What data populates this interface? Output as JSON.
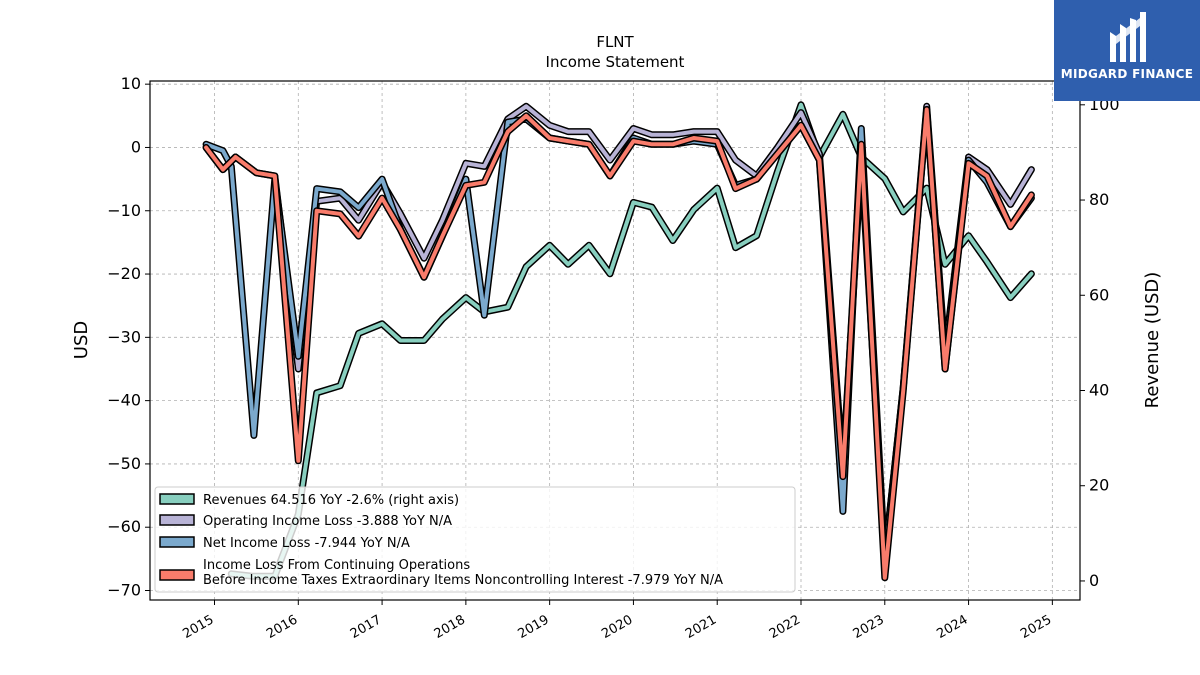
{
  "chart_data": {
    "type": "line",
    "title": "FLNT",
    "subtitle": "Income Statement",
    "ylabel": "USD",
    "ylabel_right": "Revenue (USD)",
    "ylim": [
      -71.5,
      10.5
    ],
    "ylim_right": [
      -4.0,
      105.0
    ],
    "xlim": [
      2014.23,
      2025.33
    ],
    "yticks": [
      10,
      0,
      -10,
      -20,
      -30,
      -40,
      -50,
      -60,
      -70
    ],
    "ytick_labels": [
      "10",
      "0",
      "−10",
      "−20",
      "−30",
      "−40",
      "−50",
      "−60",
      "−70"
    ],
    "yticks_right": [
      100,
      80,
      60,
      40,
      20,
      0
    ],
    "ytick_right_labels": [
      "100",
      "80",
      "60",
      "40",
      "20",
      "0"
    ],
    "xticks": [
      2015,
      2016,
      2017,
      2018,
      2019,
      2020,
      2021,
      2022,
      2023,
      2024,
      2025
    ],
    "xtick_labels": [
      "2015",
      "2016",
      "2017",
      "2018",
      "2019",
      "2020",
      "2021",
      "2022",
      "2023",
      "2024",
      "2025"
    ],
    "grid": true,
    "legend_position": "lower-left",
    "series": [
      {
        "name": "Revenues  64.516 YoY -2.6% (right axis)",
        "axis": "right",
        "color": "#88cfbf",
        "x": [
          2015.2,
          2015.45,
          2015.72,
          2016.0,
          2016.22,
          2016.5,
          2016.72,
          2017.0,
          2017.22,
          2017.5,
          2017.72,
          2018.0,
          2018.22,
          2018.5,
          2018.72,
          2019.0,
          2019.22,
          2019.47,
          2019.72,
          2020.0,
          2020.22,
          2020.47,
          2020.72,
          2021.0,
          2021.22,
          2021.47,
          2021.72,
          2022.0,
          2022.22,
          2022.5,
          2022.72,
          2023.0,
          2023.22,
          2023.5,
          2023.72,
          2024.0,
          2024.22,
          2024.5,
          2024.75
        ],
        "y": [
          1.5,
          1.0,
          1.0,
          14.0,
          39.5,
          41.0,
          52.0,
          54.0,
          50.5,
          50.5,
          55.0,
          59.5,
          56.5,
          57.5,
          66.0,
          70.5,
          66.5,
          70.5,
          64.5,
          79.5,
          78.5,
          71.5,
          78.0,
          82.5,
          70.0,
          72.5,
          86.0,
          100.0,
          89.0,
          98.0,
          89.0,
          84.5,
          77.5,
          82.5,
          66.5,
          72.5,
          67.0,
          59.5,
          64.5
        ]
      },
      {
        "name": "Operating Income Loss  -3.888 YoY N/A",
        "axis": "left",
        "color": "#b8b3d6",
        "x": [
          2014.9,
          2015.1,
          2015.25,
          2015.5,
          2015.72,
          2016.0,
          2016.22,
          2016.5,
          2016.72,
          2017.0,
          2017.22,
          2017.5,
          2017.72,
          2018.0,
          2018.22,
          2018.5,
          2018.72,
          2019.0,
          2019.22,
          2019.47,
          2019.72,
          2020.0,
          2020.22,
          2020.47,
          2020.72,
          2021.0,
          2021.22,
          2021.47,
          2021.72,
          2022.0,
          2022.22,
          2022.5,
          2022.72,
          2023.0,
          2023.22,
          2023.5,
          2023.72,
          2024.0,
          2024.22,
          2024.5,
          2024.75
        ],
        "y": [
          0.0,
          -3.5,
          -1.5,
          -4.0,
          -4.5,
          -35.0,
          -8.5,
          -8.0,
          -11.5,
          -5.5,
          -10.5,
          -17.5,
          -11.5,
          -2.5,
          -3.0,
          4.5,
          6.5,
          3.5,
          2.5,
          2.5,
          -2.0,
          3.0,
          2.0,
          2.0,
          2.5,
          2.5,
          -2.0,
          -4.5,
          0.0,
          5.5,
          -1.0,
          -50.5,
          -2.0,
          -65.0,
          -38.0,
          6.5,
          -32.5,
          -1.5,
          -3.5,
          -9.0,
          -3.5
        ]
      },
      {
        "name": "Net Income Loss  -7.944 YoY N/A",
        "axis": "left",
        "color": "#7ba9cd",
        "x": [
          2014.9,
          2015.0,
          2015.1,
          2015.2,
          2015.47,
          2015.72,
          2016.0,
          2016.22,
          2016.5,
          2016.72,
          2017.0,
          2017.22,
          2017.5,
          2017.72,
          2018.0,
          2018.22,
          2018.5,
          2018.72,
          2019.0,
          2019.22,
          2019.47,
          2019.72,
          2020.0,
          2020.22,
          2020.47,
          2020.72,
          2021.0,
          2021.22,
          2021.47,
          2021.72,
          2022.0,
          2022.22,
          2022.5,
          2022.72,
          2023.0,
          2023.22,
          2023.5,
          2023.72,
          2024.0,
          2024.22,
          2024.5,
          2024.75
        ],
        "y": [
          0.5,
          0.0,
          -0.5,
          -3.0,
          -45.5,
          -5.0,
          -33.0,
          -6.5,
          -7.0,
          -9.5,
          -5.0,
          -13.0,
          -20.5,
          -14.0,
          -5.0,
          -26.5,
          4.0,
          4.5,
          1.5,
          1.0,
          0.5,
          -4.5,
          1.5,
          0.5,
          0.5,
          1.0,
          0.5,
          -6.0,
          -5.0,
          -1.0,
          3.5,
          -2.0,
          -57.5,
          3.0,
          -65.0,
          -38.0,
          6.0,
          -35.0,
          -2.0,
          -5.5,
          -12.5,
          -8.0
        ]
      },
      {
        "name": "Income Loss From Continuing Operations\nBefore Income Taxes Extraordinary Items Noncontrolling Interest  -7.979 YoY N/A",
        "axis": "left",
        "color": "#f97c6b",
        "x": [
          2014.9,
          2015.1,
          2015.25,
          2015.5,
          2015.72,
          2016.0,
          2016.22,
          2016.5,
          2016.72,
          2017.0,
          2017.22,
          2017.5,
          2017.72,
          2018.0,
          2018.22,
          2018.5,
          2018.72,
          2019.0,
          2019.22,
          2019.47,
          2019.72,
          2020.0,
          2020.22,
          2020.47,
          2020.72,
          2021.0,
          2021.22,
          2021.47,
          2021.72,
          2022.0,
          2022.22,
          2022.5,
          2022.72,
          2023.0,
          2023.22,
          2023.5,
          2023.72,
          2024.0,
          2024.22,
          2024.5,
          2024.75
        ],
        "y": [
          0.0,
          -3.5,
          -1.5,
          -4.0,
          -4.5,
          -49.5,
          -10.0,
          -10.5,
          -14.0,
          -8.0,
          -13.0,
          -20.5,
          -14.0,
          -6.0,
          -5.5,
          2.5,
          5.0,
          1.5,
          1.0,
          0.5,
          -4.5,
          1.0,
          0.5,
          0.5,
          1.5,
          1.0,
          -6.5,
          -5.0,
          -1.0,
          3.5,
          -2.0,
          -52.0,
          0.5,
          -68.0,
          -38.5,
          6.0,
          -35.0,
          -2.5,
          -4.5,
          -12.5,
          -7.5
        ]
      }
    ]
  },
  "logo": {
    "text": "MIDGARD FINANCE",
    "color": "#2f5fae"
  }
}
